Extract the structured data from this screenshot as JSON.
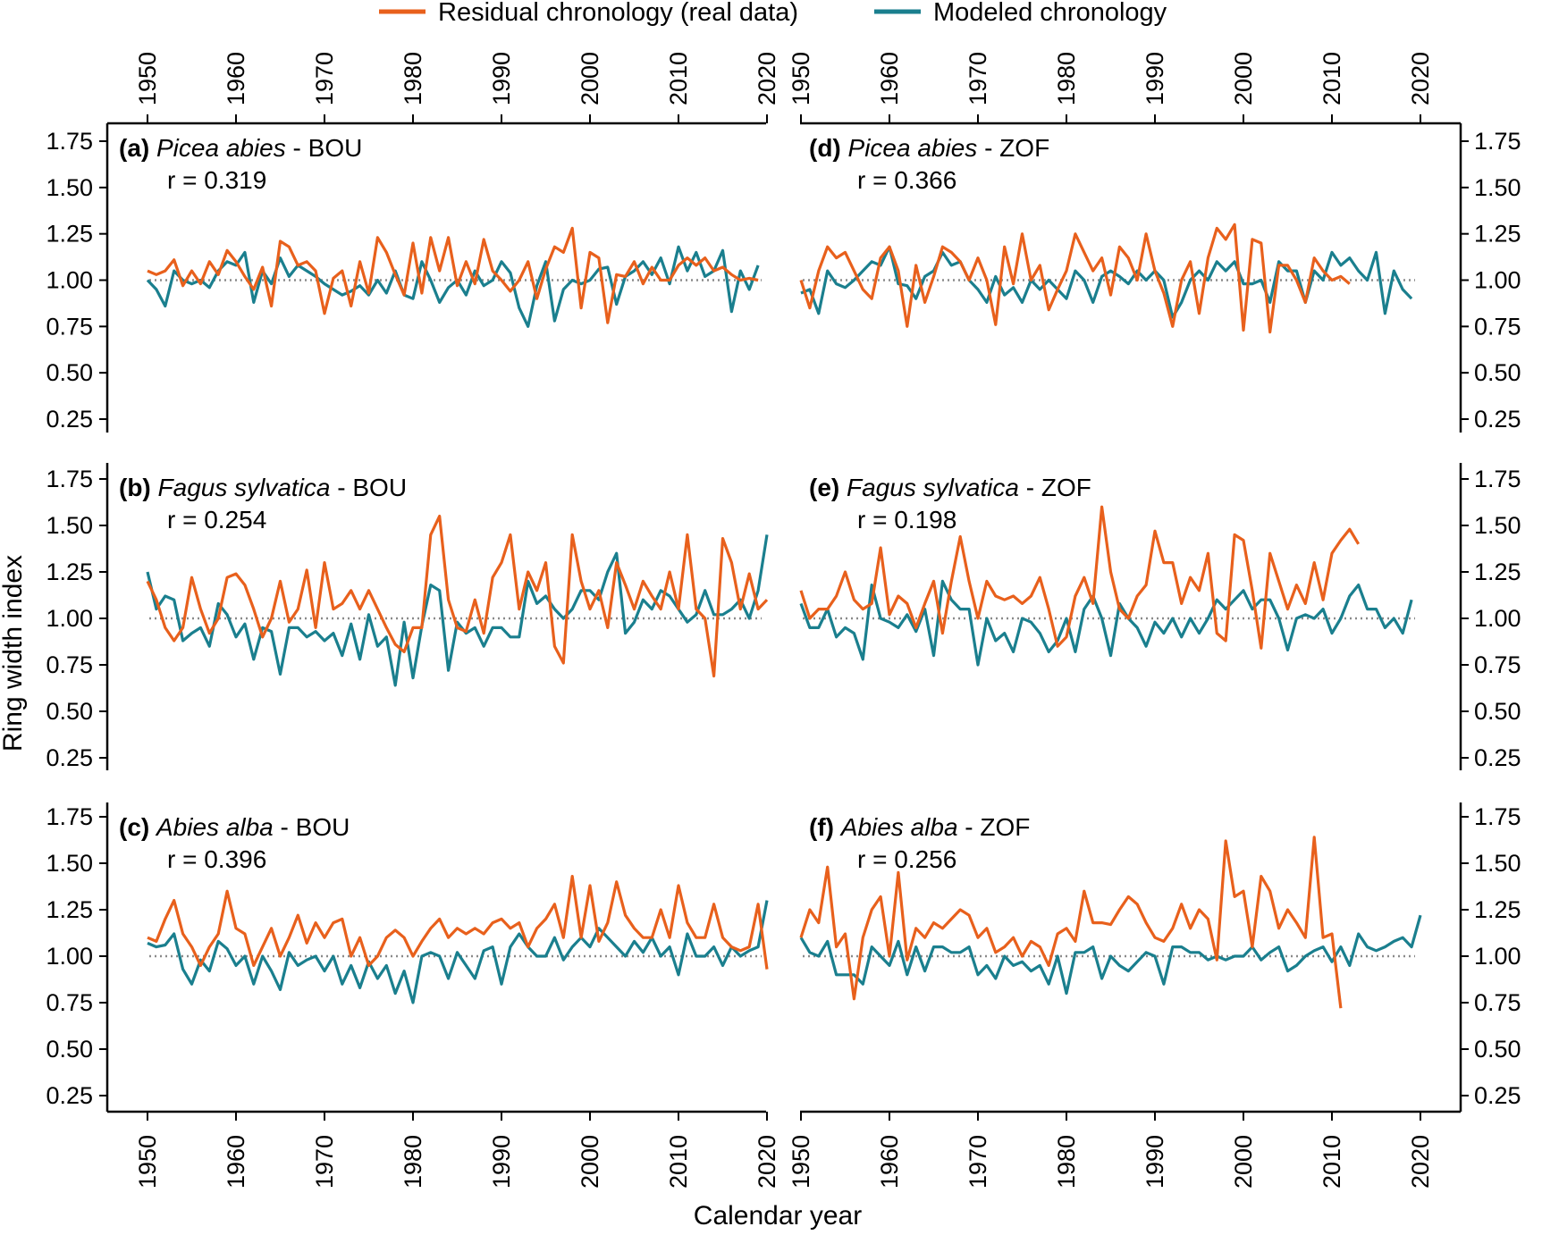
{
  "chart_data": {
    "type": "line",
    "legend": {
      "placement": "top-center",
      "entries": [
        {
          "name": "Residual chronology (real data)",
          "color": "#e8601c"
        },
        {
          "name": "Modeled chronology",
          "color": "#1a7f8e"
        }
      ]
    },
    "xlabel": "Calendar year",
    "ylabel": "Ring width index",
    "xlim": [
      1950,
      2020
    ],
    "ylim": [
      0.25,
      1.75
    ],
    "xticks": [
      "1950",
      "1960",
      "1970",
      "1980",
      "1990",
      "2000",
      "2010",
      "2020"
    ],
    "yticks": [
      "0.25",
      "0.50",
      "0.75",
      "1.00",
      "1.25",
      "1.50",
      "1.75"
    ],
    "reference_line": 1.0,
    "panels": [
      {
        "id": "a",
        "label": "(a)",
        "species": "Picea abies",
        "site": "- BOU",
        "r_text": "r = 0.319",
        "real": {
          "start": 1950,
          "values": [
            1.05,
            1.03,
            1.05,
            1.11,
            0.97,
            1.05,
            0.98,
            1.1,
            1.03,
            1.16,
            1.1,
            1.02,
            0.95,
            1.07,
            0.86,
            1.21,
            1.18,
            1.08,
            1.1,
            1.05,
            0.82,
            1.01,
            1.05,
            0.86,
            1.1,
            0.93,
            1.23,
            1.15,
            1.03,
            0.92,
            1.2,
            0.93,
            1.23,
            1.05,
            1.23,
            0.97,
            1.1,
            0.98,
            1.22,
            1.05,
            1.0,
            0.94,
            1.0,
            1.1,
            0.9,
            1.06,
            1.18,
            1.15,
            1.28,
            0.85,
            1.15,
            1.12,
            0.77,
            1.03,
            1.02,
            1.1,
            0.98,
            1.07,
            1.0,
            1.0,
            1.08,
            1.12,
            1.08,
            1.12,
            1.05,
            1.07,
            1.03,
            1.0,
            1.01,
            1.0
          ]
        },
        "model": {
          "start": 1950,
          "values": [
            1.0,
            0.95,
            0.86,
            1.05,
            1.0,
            0.98,
            1.0,
            0.96,
            1.05,
            1.1,
            1.08,
            1.15,
            0.88,
            1.05,
            0.98,
            1.12,
            1.02,
            1.08,
            1.05,
            1.02,
            0.98,
            0.95,
            0.92,
            0.94,
            0.97,
            0.92,
            1.0,
            0.93,
            1.05,
            0.92,
            0.9,
            1.1,
            1.0,
            0.88,
            0.96,
            1.0,
            0.92,
            1.05,
            0.97,
            1.0,
            1.1,
            1.04,
            0.85,
            0.75,
            0.97,
            1.1,
            0.78,
            0.95,
            1.0,
            0.98,
            1.0,
            1.06,
            1.07,
            0.87,
            1.02,
            1.05,
            1.1,
            1.03,
            1.12,
            0.98,
            1.18,
            1.05,
            1.15,
            1.02,
            1.05,
            1.16,
            0.83,
            1.05,
            0.95,
            1.08
          ]
        }
      },
      {
        "id": "b",
        "label": "(b)",
        "species": "Fagus sylvatica",
        "site": "- BOU",
        "r_text": "r = 0.254",
        "real": {
          "start": 1950,
          "values": [
            1.2,
            1.1,
            0.95,
            0.88,
            0.95,
            1.22,
            1.05,
            0.92,
            1.0,
            1.22,
            1.24,
            1.18,
            1.05,
            0.9,
            1.0,
            1.2,
            0.98,
            1.05,
            1.26,
            0.95,
            1.3,
            1.05,
            1.08,
            1.15,
            1.05,
            1.15,
            1.05,
            0.95,
            0.86,
            0.82,
            0.95,
            0.95,
            1.45,
            1.55,
            1.1,
            0.95,
            0.93,
            1.1,
            0.92,
            1.22,
            1.3,
            1.45,
            1.05,
            1.25,
            1.15,
            1.3,
            0.85,
            0.76,
            1.45,
            1.2,
            1.05,
            1.15,
            0.95,
            1.3,
            1.18,
            1.05,
            1.2,
            1.12,
            1.05,
            1.25,
            1.05,
            1.45,
            1.05,
            1.0,
            0.69,
            1.43,
            1.3,
            1.05,
            1.24,
            1.05,
            1.1
          ]
        },
        "model": {
          "start": 1950,
          "values": [
            1.25,
            1.05,
            1.12,
            1.1,
            0.88,
            0.92,
            0.95,
            0.85,
            1.08,
            1.02,
            0.9,
            0.97,
            0.78,
            0.95,
            0.93,
            0.7,
            0.95,
            0.95,
            0.9,
            0.93,
            0.88,
            0.92,
            0.8,
            0.97,
            0.78,
            1.02,
            0.85,
            0.9,
            0.64,
            0.98,
            0.68,
            0.96,
            1.18,
            1.15,
            0.72,
            0.98,
            0.92,
            0.95,
            0.85,
            0.95,
            0.95,
            0.9,
            0.9,
            1.2,
            1.08,
            1.12,
            1.05,
            1.0,
            1.05,
            1.15,
            1.15,
            1.1,
            1.25,
            1.35,
            0.92,
            0.98,
            1.1,
            1.05,
            1.15,
            1.12,
            1.05,
            0.98,
            1.02,
            1.15,
            1.02,
            1.02,
            1.05,
            1.1,
            1.0,
            1.15,
            1.45
          ]
        }
      },
      {
        "id": "c",
        "label": "(c)",
        "species": "Abies alba",
        "site": "- BOU",
        "r_text": "r = 0.396",
        "real": {
          "start": 1950,
          "values": [
            1.1,
            1.08,
            1.2,
            1.3,
            1.12,
            1.05,
            0.95,
            1.05,
            1.12,
            1.35,
            1.15,
            1.12,
            0.95,
            1.05,
            1.15,
            1.0,
            1.1,
            1.22,
            1.07,
            1.18,
            1.1,
            1.18,
            1.2,
            1.0,
            1.1,
            0.95,
            1.0,
            1.1,
            1.14,
            1.1,
            1.0,
            1.08,
            1.15,
            1.2,
            1.1,
            1.15,
            1.12,
            1.15,
            1.12,
            1.18,
            1.2,
            1.15,
            1.18,
            1.05,
            1.15,
            1.2,
            1.28,
            1.1,
            1.43,
            1.1,
            1.38,
            1.08,
            1.18,
            1.4,
            1.22,
            1.15,
            1.1,
            1.1,
            1.25,
            1.1,
            1.38,
            1.18,
            1.1,
            1.1,
            1.28,
            1.1,
            1.05,
            1.03,
            1.05,
            1.28,
            0.93
          ]
        },
        "model": {
          "start": 1950,
          "values": [
            1.07,
            1.05,
            1.06,
            1.12,
            0.93,
            0.85,
            0.98,
            0.92,
            1.08,
            1.04,
            0.95,
            1.0,
            0.85,
            1.0,
            0.92,
            0.82,
            1.02,
            0.95,
            0.98,
            1.0,
            0.92,
            1.0,
            0.85,
            0.95,
            0.83,
            0.97,
            0.88,
            0.95,
            0.8,
            0.92,
            0.75,
            1.0,
            1.02,
            1.0,
            0.88,
            1.02,
            0.95,
            0.88,
            1.03,
            1.05,
            0.85,
            1.05,
            1.12,
            1.05,
            1.0,
            1.0,
            1.1,
            0.98,
            1.05,
            1.1,
            1.05,
            1.15,
            1.1,
            1.05,
            1.0,
            1.08,
            1.02,
            1.1,
            1.0,
            1.05,
            0.9,
            1.12,
            1.0,
            1.0,
            1.05,
            0.95,
            1.05,
            1.0,
            1.03,
            1.05,
            1.3
          ]
        }
      },
      {
        "id": "d",
        "label": "(d)",
        "species": "Picea abies",
        "site": "- ZOF",
        "r_text": "r = 0.366",
        "real": {
          "start": 1950,
          "values": [
            1.0,
            0.85,
            1.05,
            1.18,
            1.12,
            1.15,
            1.05,
            0.95,
            0.9,
            1.12,
            1.18,
            1.05,
            0.75,
            1.08,
            0.88,
            1.02,
            1.18,
            1.15,
            1.1,
            1.0,
            1.12,
            1.0,
            0.76,
            1.18,
            0.98,
            1.25,
            1.0,
            1.08,
            0.84,
            0.95,
            1.05,
            1.25,
            1.15,
            1.05,
            1.12,
            0.92,
            1.18,
            1.12,
            1.0,
            1.25,
            1.05,
            0.93,
            0.75,
            1.0,
            1.1,
            0.82,
            1.12,
            1.28,
            1.22,
            1.3,
            0.73,
            1.22,
            1.2,
            0.72,
            1.08,
            1.08,
            1.0,
            0.88,
            1.12,
            1.05,
            1.0,
            1.02,
            0.98
          ]
        },
        "model": {
          "start": 1950,
          "values": [
            0.93,
            0.95,
            0.82,
            1.05,
            0.98,
            0.96,
            1.0,
            1.05,
            1.1,
            1.08,
            1.18,
            0.98,
            0.97,
            0.9,
            1.02,
            1.05,
            1.15,
            1.08,
            1.1,
            1.0,
            0.95,
            0.88,
            1.02,
            0.92,
            0.96,
            0.88,
            1.0,
            0.95,
            1.0,
            0.95,
            0.9,
            1.05,
            1.0,
            0.88,
            1.02,
            1.05,
            1.02,
            0.98,
            1.05,
            1.0,
            1.05,
            1.0,
            0.8,
            0.88,
            1.0,
            1.05,
            1.0,
            1.1,
            1.05,
            1.1,
            0.98,
            0.98,
            1.0,
            0.88,
            1.1,
            1.05,
            1.05,
            0.88,
            1.05,
            1.0,
            1.15,
            1.08,
            1.12,
            1.05,
            1.0,
            1.15,
            0.82,
            1.05,
            0.95,
            0.9
          ]
        }
      },
      {
        "id": "e",
        "label": "(e)",
        "species": "Fagus sylvatica",
        "site": "- ZOF",
        "r_text": "r = 0.198",
        "real": {
          "start": 1950,
          "values": [
            1.15,
            1.0,
            1.05,
            1.05,
            1.12,
            1.25,
            1.1,
            1.05,
            1.08,
            1.38,
            1.02,
            1.12,
            1.08,
            0.95,
            1.08,
            1.2,
            0.92,
            1.2,
            1.44,
            1.2,
            1.0,
            1.2,
            1.12,
            1.1,
            1.12,
            1.08,
            1.12,
            1.22,
            1.05,
            0.85,
            0.9,
            1.12,
            1.22,
            1.08,
            1.6,
            1.25,
            1.05,
            1.0,
            1.12,
            1.18,
            1.47,
            1.3,
            1.3,
            1.08,
            1.22,
            1.15,
            1.35,
            0.92,
            0.88,
            1.45,
            1.42,
            1.15,
            0.84,
            1.35,
            1.2,
            1.05,
            1.18,
            1.08,
            1.3,
            1.1,
            1.35,
            1.42,
            1.48,
            1.4
          ]
        },
        "model": {
          "start": 1950,
          "values": [
            1.08,
            0.95,
            0.95,
            1.05,
            0.9,
            0.95,
            0.92,
            0.78,
            1.18,
            1.0,
            0.98,
            0.95,
            1.02,
            0.93,
            1.05,
            0.8,
            1.2,
            1.1,
            1.05,
            1.05,
            0.75,
            1.0,
            0.88,
            0.92,
            0.82,
            1.0,
            0.98,
            0.92,
            0.82,
            0.88,
            1.0,
            0.82,
            1.05,
            1.12,
            1.0,
            0.8,
            1.08,
            1.0,
            0.95,
            0.85,
            0.98,
            0.92,
            1.0,
            0.9,
            1.0,
            0.92,
            1.0,
            1.1,
            1.05,
            1.1,
            1.15,
            1.05,
            1.1,
            1.1,
            1.0,
            0.83,
            1.0,
            1.02,
            1.0,
            1.05,
            0.92,
            1.0,
            1.12,
            1.18,
            1.05,
            1.05,
            0.95,
            1.0,
            0.92,
            1.1
          ]
        }
      },
      {
        "id": "f",
        "label": "(f)",
        "species": "Abies alba",
        "site": "- ZOF",
        "r_text": "r = 0.256",
        "real": {
          "start": 1950,
          "values": [
            1.1,
            1.25,
            1.18,
            1.48,
            1.05,
            1.12,
            0.77,
            1.1,
            1.25,
            1.32,
            1.0,
            1.45,
            0.98,
            1.15,
            1.1,
            1.18,
            1.15,
            1.2,
            1.25,
            1.22,
            1.1,
            1.15,
            1.02,
            1.05,
            1.1,
            1.0,
            1.08,
            1.05,
            0.95,
            1.12,
            1.15,
            1.08,
            1.35,
            1.18,
            1.18,
            1.17,
            1.25,
            1.32,
            1.28,
            1.18,
            1.1,
            1.08,
            1.15,
            1.28,
            1.15,
            1.25,
            1.2,
            0.98,
            1.62,
            1.32,
            1.35,
            1.05,
            1.43,
            1.35,
            1.15,
            1.25,
            1.18,
            1.1,
            1.64,
            1.1,
            1.12,
            0.72
          ]
        },
        "model": {
          "start": 1950,
          "values": [
            1.1,
            1.02,
            1.0,
            1.08,
            0.9,
            0.9,
            0.9,
            0.85,
            1.05,
            1.0,
            0.95,
            1.08,
            0.9,
            1.05,
            0.92,
            1.05,
            1.05,
            1.02,
            1.02,
            1.05,
            0.9,
            0.95,
            0.88,
            1.0,
            0.95,
            0.97,
            0.92,
            0.95,
            0.85,
            1.0,
            0.8,
            1.02,
            1.02,
            1.05,
            0.88,
            1.0,
            0.95,
            0.92,
            0.97,
            1.02,
            1.0,
            0.85,
            1.05,
            1.05,
            1.02,
            1.02,
            0.98,
            1.0,
            0.98,
            1.0,
            1.0,
            1.05,
            0.98,
            1.02,
            1.05,
            0.92,
            0.95,
            1.0,
            1.03,
            1.05,
            0.97,
            1.05,
            0.95,
            1.12,
            1.05,
            1.03,
            1.05,
            1.08,
            1.1,
            1.05,
            1.22
          ]
        }
      }
    ]
  }
}
